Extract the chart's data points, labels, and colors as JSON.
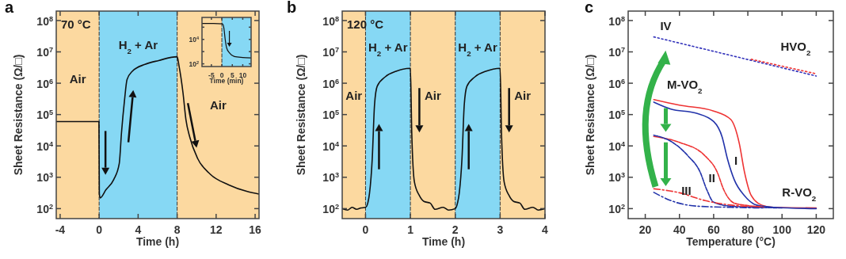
{
  "chart_data": [
    {
      "type": "line",
      "title": "a",
      "xlabel": "Time (h)",
      "ylabel": "Sheet Resistance (Ω/□)",
      "log": "y",
      "xlim": [
        -4.4,
        16.4
      ],
      "ylim": [
        48,
        200000000
      ],
      "xticks": [
        -4,
        0,
        4,
        8,
        12,
        16
      ],
      "yticks": [
        {
          "value": 100,
          "label": "10$^{2}$"
        },
        {
          "value": 1000,
          "label": "10$^{3}$"
        },
        {
          "value": 10000,
          "label": "10$^{4}$"
        },
        {
          "value": 100000,
          "label": "10$^{5}$"
        },
        {
          "value": 1000000,
          "label": "10$^{6}$"
        },
        {
          "value": 10000000,
          "label": "10$^{7}$"
        },
        {
          "value": 100000000,
          "label": "10$^{8}$"
        }
      ],
      "bands": [
        {
          "axis": "x",
          "from": -4.4,
          "to": 0,
          "label": "Air",
          "color": "#fcd9a0"
        },
        {
          "axis": "x",
          "from": 0,
          "to": 8,
          "label": "H$_{2}$ + Ar",
          "color": "#86d8f4"
        },
        {
          "axis": "x",
          "from": 8,
          "to": 16.4,
          "label": "Air",
          "color": "#fcd9a0"
        }
      ],
      "annotations": [
        "70 °C"
      ],
      "ref_lines": [
        {
          "axis": "x",
          "value": 0,
          "line_style": "dashed",
          "color": "#333333"
        },
        {
          "axis": "x",
          "value": 8,
          "line_style": "dashed",
          "color": "#333333"
        }
      ],
      "series": [
        {
          "color": "#111111",
          "line_style": "solid",
          "x": [
            -4.4,
            -2,
            -0.02,
            0.02,
            0.1,
            0.7,
            1.5,
            2.06,
            2.3,
            2.6,
            2.86,
            3.4,
            4.7,
            6.1,
            8,
            8.2,
            8.6,
            8.9,
            9.3,
            10.1,
            11.4,
            13.3,
            15.2,
            16.4
          ],
          "values": [
            60000,
            60000,
            60000,
            300,
            220,
            400,
            850,
            2700,
            28000,
            280000,
            1300000,
            2400000,
            4000000,
            5300000,
            7000000,
            3500000,
            500000,
            70000,
            19000,
            4000,
            1250,
            570,
            350,
            290
          ]
        }
      ]
    },
    {
      "type": "line",
      "xlabel": "Time (min)",
      "log": "y",
      "xlim": [
        -9.5,
        14
      ],
      "ylim": [
        60,
        630000
      ],
      "xticks": [
        -5,
        0,
        5,
        10
      ],
      "yticks": [
        {
          "value": 100,
          "label": "10$^{2}$"
        },
        {
          "value": 1000,
          "label": null
        },
        {
          "value": 10000,
          "label": "10$^{4}$"
        },
        {
          "value": 100000,
          "label": null
        }
      ],
      "bands": [
        {
          "axis": "x",
          "from": -9.5,
          "to": 0,
          "color": "#fcd9a0"
        },
        {
          "axis": "x",
          "from": 0,
          "to": 14,
          "color": "#86d8f4"
        }
      ],
      "ref_lines": [
        {
          "axis": "x",
          "value": 0,
          "line_style": "dashed",
          "color": "#333333"
        }
      ],
      "series": [
        {
          "color": "#111111",
          "line_style": "solid",
          "x": [
            -9.5,
            -4,
            0.3,
            1,
            1.6,
            2.3,
            3.6,
            6,
            10,
            14
          ],
          "values": [
            200000,
            200000,
            190000,
            80000,
            10000,
            2000,
            800,
            400,
            330,
            300
          ]
        }
      ]
    },
    {
      "type": "line",
      "title": "b",
      "xlabel": "Time (h)",
      "ylabel": "Sheet Resistance (Ω/□)",
      "log": "y",
      "xlim": [
        -0.52,
        4
      ],
      "ylim": [
        48,
        200000000
      ],
      "xticks": [
        0,
        1,
        2,
        3,
        4
      ],
      "yticks": [
        {
          "value": 100,
          "label": "10$^{2}$"
        },
        {
          "value": 1000,
          "label": "10$^{3}$"
        },
        {
          "value": 10000,
          "label": "10$^{4}$"
        },
        {
          "value": 100000,
          "label": "10$^{5}$"
        },
        {
          "value": 1000000,
          "label": "10$^{6}$"
        },
        {
          "value": 10000000,
          "label": "10$^{7}$"
        },
        {
          "value": 100000000,
          "label": "10$^{8}$"
        }
      ],
      "bands": [
        {
          "axis": "x",
          "from": -0.52,
          "to": 0,
          "label": "Air",
          "color": "#fcd9a0"
        },
        {
          "axis": "x",
          "from": 0,
          "to": 1,
          "label": "H$_{2}$ + Ar",
          "color": "#86d8f4"
        },
        {
          "axis": "x",
          "from": 1,
          "to": 2,
          "label": "Air",
          "color": "#fcd9a0"
        },
        {
          "axis": "x",
          "from": 2,
          "to": 3,
          "label": "H$_{2}$ + Ar",
          "color": "#86d8f4"
        },
        {
          "axis": "x",
          "from": 3,
          "to": 4,
          "label": "Air",
          "color": "#fcd9a0"
        }
      ],
      "annotations": [
        "120 °C"
      ],
      "ref_lines": [
        {
          "axis": "x",
          "value": 0,
          "line_style": "dashed",
          "color": "#333333"
        },
        {
          "axis": "x",
          "value": 1,
          "line_style": "dashed",
          "color": "#333333"
        },
        {
          "axis": "x",
          "value": 2,
          "line_style": "dashed",
          "color": "#333333"
        },
        {
          "axis": "x",
          "value": 3,
          "line_style": "dashed",
          "color": "#333333"
        }
      ],
      "series": [
        {
          "color": "#111111",
          "line_style": "solid",
          "x": [
            -0.52,
            -0.4,
            -0.3,
            -0.2,
            -0.1,
            0,
            0.05,
            0.09,
            0.15,
            0.2,
            0.26,
            0.44,
            0.68,
            1,
            1.03,
            1.09,
            1.2,
            1.3,
            1.44,
            1.55,
            1.73,
            1.85,
            2,
            2.05,
            2.09,
            2.15,
            2.2,
            2.26,
            2.44,
            2.68,
            3,
            3.03,
            3.09,
            3.2,
            3.3,
            3.44,
            3.55,
            3.73,
            3.85,
            4
          ],
          "values": [
            100,
            90,
            110,
            95,
            105,
            110,
            150,
            320,
            4000,
            200000,
            800000,
            1600000,
            2400000,
            3000000,
            28000,
            700,
            260,
            170,
            150,
            95,
            110,
            90,
            100,
            150,
            320,
            4000,
            200000,
            800000,
            1600000,
            2400000,
            3000000,
            28000,
            700,
            260,
            170,
            150,
            95,
            110,
            90,
            100
          ]
        }
      ]
    },
    {
      "type": "line",
      "title": "c",
      "xlabel": "Temperature (°C)",
      "ylabel": "Sheet Resistance (Ω/□)",
      "log": "y",
      "xlim": [
        10,
        130
      ],
      "ylim": [
        48,
        200000000
      ],
      "xticks": [
        20,
        40,
        60,
        80,
        100,
        120
      ],
      "yticks": [
        {
          "value": 100,
          "label": "10$^{2}$"
        },
        {
          "value": 1000,
          "label": "10$^{3}$"
        },
        {
          "value": 10000,
          "label": "10$^{4}$"
        },
        {
          "value": 100000,
          "label": "10$^{5}$"
        },
        {
          "value": 1000000,
          "label": "10$^{6}$"
        },
        {
          "value": 10000000,
          "label": "10$^{7}$"
        },
        {
          "value": 100000000,
          "label": "10$^{8}$"
        }
      ],
      "annotations": [
        "IV",
        "HVO$_{2}$",
        "M-VO$_{2}$",
        "I",
        "II",
        "III",
        "R-VO$_{2}$"
      ],
      "series": [
        {
          "color": "#3333bb",
          "line_style": "dotted",
          "x": [
            25,
            120
          ],
          "values": [
            30000000,
            1700000
          ]
        },
        {
          "color": "#ee3333",
          "line_style": "dotted",
          "x": [
            82,
            120
          ],
          "values": [
            5800000,
            2000000
          ]
        },
        {
          "color": "#ee3333",
          "line_style": "solid",
          "x": [
            25,
            40,
            60,
            70,
            75,
            78,
            82,
            88,
            95,
            120
          ],
          "values": [
            300000,
            200000,
            130000,
            70000,
            12000,
            1500,
            260,
            130,
            110,
            105
          ]
        },
        {
          "color": "#2233aa",
          "line_style": "solid",
          "x": [
            25,
            35,
            50,
            60,
            65,
            68,
            72,
            78,
            85,
            95,
            120
          ],
          "values": [
            250000,
            150000,
            110000,
            60000,
            19000,
            4000,
            850,
            260,
            130,
            110,
            100
          ]
        },
        {
          "color": "#ee3333",
          "line_style": "dashed",
          "x": [
            25,
            40,
            55,
            62,
            66,
            72,
            80,
            88
          ],
          "values": [
            20000,
            13000,
            4800,
            1500,
            390,
            150,
            125,
            115
          ]
        },
        {
          "color": "#2233aa",
          "line_style": "dashed",
          "x": [
            25,
            35,
            45,
            52,
            56,
            60,
            70,
            100
          ],
          "values": [
            22000,
            14000,
            4800,
            1500,
            400,
            160,
            120,
            105
          ]
        },
        {
          "color": "#ee3333",
          "line_style": "dashdot",
          "x": [
            25,
            40,
            55,
            70,
            90
          ],
          "values": [
            430,
            320,
            180,
            130,
            110
          ]
        },
        {
          "color": "#2233aa",
          "line_style": "dashdot",
          "x": [
            25,
            35,
            50,
            70,
            90
          ],
          "values": [
            330,
            180,
            120,
            110,
            105
          ]
        }
      ]
    }
  ]
}
